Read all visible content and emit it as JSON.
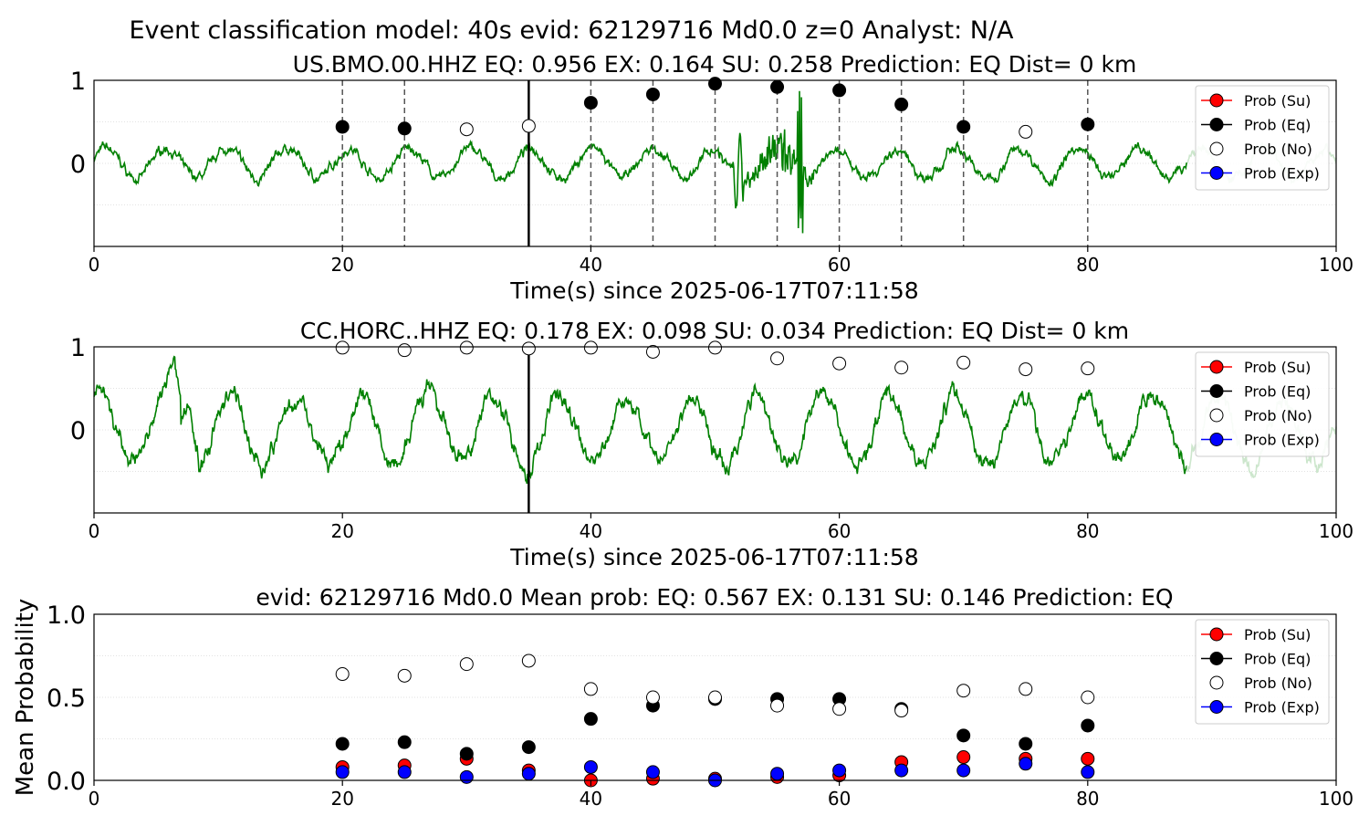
{
  "suptitle": "Event classification model: 40s evid: 62129716 Md0.0 z=0 Analyst: N/A",
  "legend_labels": [
    "Prob (Su)",
    "Prob (Eq)",
    "Prob (No)",
    "Prob (Exp)"
  ],
  "colors": {
    "su": "#ff0000",
    "eq": "#000000",
    "no": "#ffffff",
    "exp": "#0000ff",
    "trace": "#008000",
    "trace_tail": "#cce6cc",
    "grid": "#d9d9d9",
    "dash": "#555555"
  },
  "panels": [
    {
      "title": "US.BMO.00.HHZ   EQ: 0.956  EX: 0.164  SU: 0.258   Prediction: EQ    Dist= 0 km",
      "xlabel": "Time(s) since 2025-06-17T07:11:58",
      "yticks": [
        "0",
        "1"
      ],
      "xticks": [
        "0",
        "20",
        "40",
        "60",
        "80",
        "100"
      ]
    },
    {
      "title": "CC.HORC..HHZ   EQ: 0.178  EX: 0.098  SU: 0.034   Prediction: EQ    Dist= 0 km",
      "xlabel": "Time(s) since 2025-06-17T07:11:58",
      "yticks": [
        "0",
        "1"
      ],
      "xticks": [
        "0",
        "20",
        "40",
        "60",
        "80",
        "100"
      ]
    },
    {
      "title": "evid: 62129716  Md0.0   Mean prob:   EQ: 0.567  EX: 0.131  SU: 0.146   Prediction: EQ",
      "ylabel": "Mean Probability",
      "yticks": [
        "0.0",
        "0.5",
        "1.0"
      ],
      "xticks": [
        "0",
        "20",
        "40",
        "60",
        "80",
        "100"
      ]
    }
  ],
  "chart_data": [
    {
      "type": "line",
      "title": "US.BMO.00.HHZ   EQ: 0.956  EX: 0.164  SU: 0.258   Prediction: EQ    Dist= 0 km",
      "xlabel": "Time(s) since 2025-06-17T07:11:58",
      "xlim": [
        0,
        100
      ],
      "ylim": [
        -1,
        1
      ],
      "grid": "horizontal dotted",
      "legend_position": "right",
      "pick_time": 35,
      "window_lines": [
        20,
        25,
        40,
        45,
        50,
        55,
        60,
        65,
        70,
        80
      ],
      "series": [
        {
          "name": "Prob (Eq)",
          "x": [
            20,
            25,
            40,
            45,
            50,
            55,
            60,
            65,
            70,
            80
          ],
          "y": [
            0.44,
            0.42,
            0.73,
            0.83,
            0.96,
            0.92,
            0.88,
            0.71,
            0.44,
            0.47
          ]
        },
        {
          "name": "Prob (No)",
          "x": [
            30,
            35,
            75
          ],
          "y": [
            0.41,
            0.45,
            0.38
          ]
        }
      ]
    },
    {
      "type": "line",
      "title": "CC.HORC..HHZ   EQ: 0.178  EX: 0.098  SU: 0.034   Prediction: EQ    Dist= 0 km",
      "xlabel": "Time(s) since 2025-06-17T07:11:58",
      "xlim": [
        0,
        100
      ],
      "ylim": [
        -1,
        1
      ],
      "grid": "horizontal dotted",
      "legend_position": "right",
      "pick_time": 35,
      "series": [
        {
          "name": "Prob (No)",
          "x": [
            20,
            25,
            30,
            35,
            40,
            45,
            50,
            55,
            60,
            65,
            70,
            75,
            80
          ],
          "y": [
            0.99,
            0.96,
            0.99,
            0.98,
            0.99,
            0.94,
            0.99,
            0.86,
            0.8,
            0.75,
            0.81,
            0.73,
            0.74
          ]
        }
      ]
    },
    {
      "type": "scatter",
      "title": "evid: 62129716  Md0.0   Mean prob:   EQ: 0.567  EX: 0.131  SU: 0.146   Prediction: EQ",
      "ylabel": "Mean Probability",
      "xlim": [
        0,
        100
      ],
      "ylim": [
        0,
        1
      ],
      "grid": "horizontal dotted",
      "legend_position": "right",
      "x": [
        20,
        25,
        30,
        35,
        40,
        45,
        50,
        55,
        60,
        65,
        70,
        75,
        80
      ],
      "series": [
        {
          "name": "Prob (Su)",
          "values": [
            0.08,
            0.09,
            0.13,
            0.06,
            0.0,
            0.01,
            0.01,
            0.02,
            0.03,
            0.11,
            0.14,
            0.13,
            0.13
          ]
        },
        {
          "name": "Prob (Eq)",
          "values": [
            0.22,
            0.23,
            0.16,
            0.2,
            0.37,
            0.45,
            0.49,
            0.49,
            0.49,
            0.43,
            0.27,
            0.22,
            0.33
          ]
        },
        {
          "name": "Prob (No)",
          "values": [
            0.64,
            0.63,
            0.7,
            0.72,
            0.55,
            0.5,
            0.5,
            0.45,
            0.43,
            0.42,
            0.54,
            0.55,
            0.5
          ]
        },
        {
          "name": "Prob (Exp)",
          "values": [
            0.05,
            0.05,
            0.02,
            0.04,
            0.08,
            0.05,
            0.0,
            0.04,
            0.06,
            0.06,
            0.06,
            0.1,
            0.05
          ]
        }
      ]
    }
  ]
}
